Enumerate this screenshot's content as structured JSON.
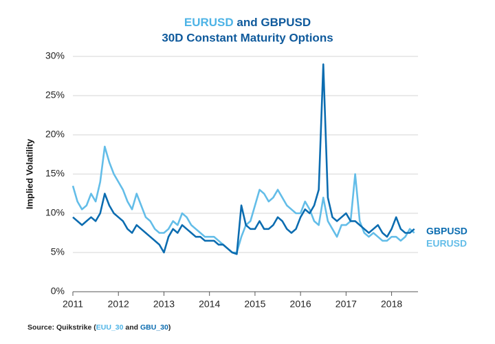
{
  "chart_data": {
    "type": "line",
    "title": [
      "EURUSD",
      "and",
      "GBPUSD"
    ],
    "subtitle": "30D Constant Maturity Options",
    "ylabel": "Implied Volatility",
    "source": [
      "Source: Quikstrike (",
      "EUU_30",
      "and",
      "GBU_30",
      ")"
    ],
    "x": [
      2011.0,
      2011.1,
      2011.2,
      2011.3,
      2011.4,
      2011.5,
      2011.6,
      2011.7,
      2011.8,
      2011.9,
      2012.0,
      2012.1,
      2012.2,
      2012.3,
      2012.4,
      2012.5,
      2012.6,
      2012.7,
      2012.8,
      2012.9,
      2013.0,
      2013.1,
      2013.2,
      2013.3,
      2013.4,
      2013.5,
      2013.6,
      2013.7,
      2013.8,
      2013.9,
      2014.0,
      2014.1,
      2014.2,
      2014.3,
      2014.4,
      2014.5,
      2014.6,
      2014.7,
      2014.8,
      2014.9,
      2015.0,
      2015.1,
      2015.2,
      2015.3,
      2015.4,
      2015.5,
      2015.6,
      2015.7,
      2015.8,
      2015.9,
      2016.0,
      2016.1,
      2016.2,
      2016.3,
      2016.4,
      2016.5,
      2016.6,
      2016.7,
      2016.8,
      2016.9,
      2017.0,
      2017.1,
      2017.2,
      2017.3,
      2017.4,
      2017.5,
      2017.6,
      2017.7,
      2017.8,
      2017.9,
      2018.0,
      2018.1,
      2018.2,
      2018.3,
      2018.4,
      2018.5
    ],
    "series": [
      {
        "name": "EURUSD",
        "color": "#63bde8",
        "values": [
          13.5,
          11.5,
          10.5,
          11,
          12.5,
          11.5,
          14,
          18.5,
          16.5,
          15,
          14,
          13,
          11.5,
          10.5,
          12.5,
          11,
          9.5,
          9,
          8,
          7.5,
          7.5,
          8,
          9,
          8.5,
          10,
          9.5,
          8.5,
          8,
          7.5,
          7,
          7,
          7,
          6.5,
          6,
          5.5,
          5,
          5,
          7,
          8.5,
          9,
          11,
          13,
          12.5,
          11.5,
          12,
          13,
          12,
          11,
          10.5,
          10,
          10,
          11.5,
          10.5,
          9,
          8.5,
          12,
          9,
          8,
          7,
          8.5,
          8.5,
          9,
          15,
          9,
          7.5,
          7,
          7.5,
          7,
          6.5,
          6.5,
          7,
          7,
          6.5,
          7,
          8,
          7.5
        ]
      },
      {
        "name": "GBPUSD",
        "color": "#0b6cb0",
        "values": [
          9.5,
          9,
          8.5,
          9,
          9.5,
          9,
          10,
          12.5,
          11,
          10,
          9.5,
          9,
          8,
          7.5,
          8.5,
          8,
          7.5,
          7,
          6.5,
          6,
          5,
          7,
          8,
          7.5,
          8.5,
          8,
          7.5,
          7,
          7,
          6.5,
          6.5,
          6.5,
          6,
          6,
          5.5,
          5,
          4.8,
          11,
          8.5,
          8,
          8,
          9,
          8,
          8,
          8.5,
          9.5,
          9,
          8,
          7.5,
          8,
          9.5,
          10.5,
          10,
          11,
          13,
          29,
          12,
          9.5,
          9,
          9.5,
          10,
          9,
          9,
          8.5,
          8,
          7.5,
          8,
          8.5,
          7.5,
          7,
          8,
          9.5,
          8,
          7.5,
          7.5,
          8
        ]
      }
    ],
    "xlim": [
      2011,
      2018.58
    ],
    "xticks": [
      2011,
      2012,
      2013,
      2014,
      2015,
      2016,
      2017,
      2018
    ],
    "ylim": [
      0,
      30
    ],
    "yticks": [
      {
        "value": 0,
        "label": "0%"
      },
      {
        "value": 5,
        "label": "5%"
      },
      {
        "value": 10,
        "label": "10%"
      },
      {
        "value": 15,
        "label": "15%"
      },
      {
        "value": 20,
        "label": "20%"
      },
      {
        "value": 25,
        "label": "25%"
      },
      {
        "value": 30,
        "label": "30%"
      }
    ],
    "grid": true,
    "legend": "right"
  }
}
